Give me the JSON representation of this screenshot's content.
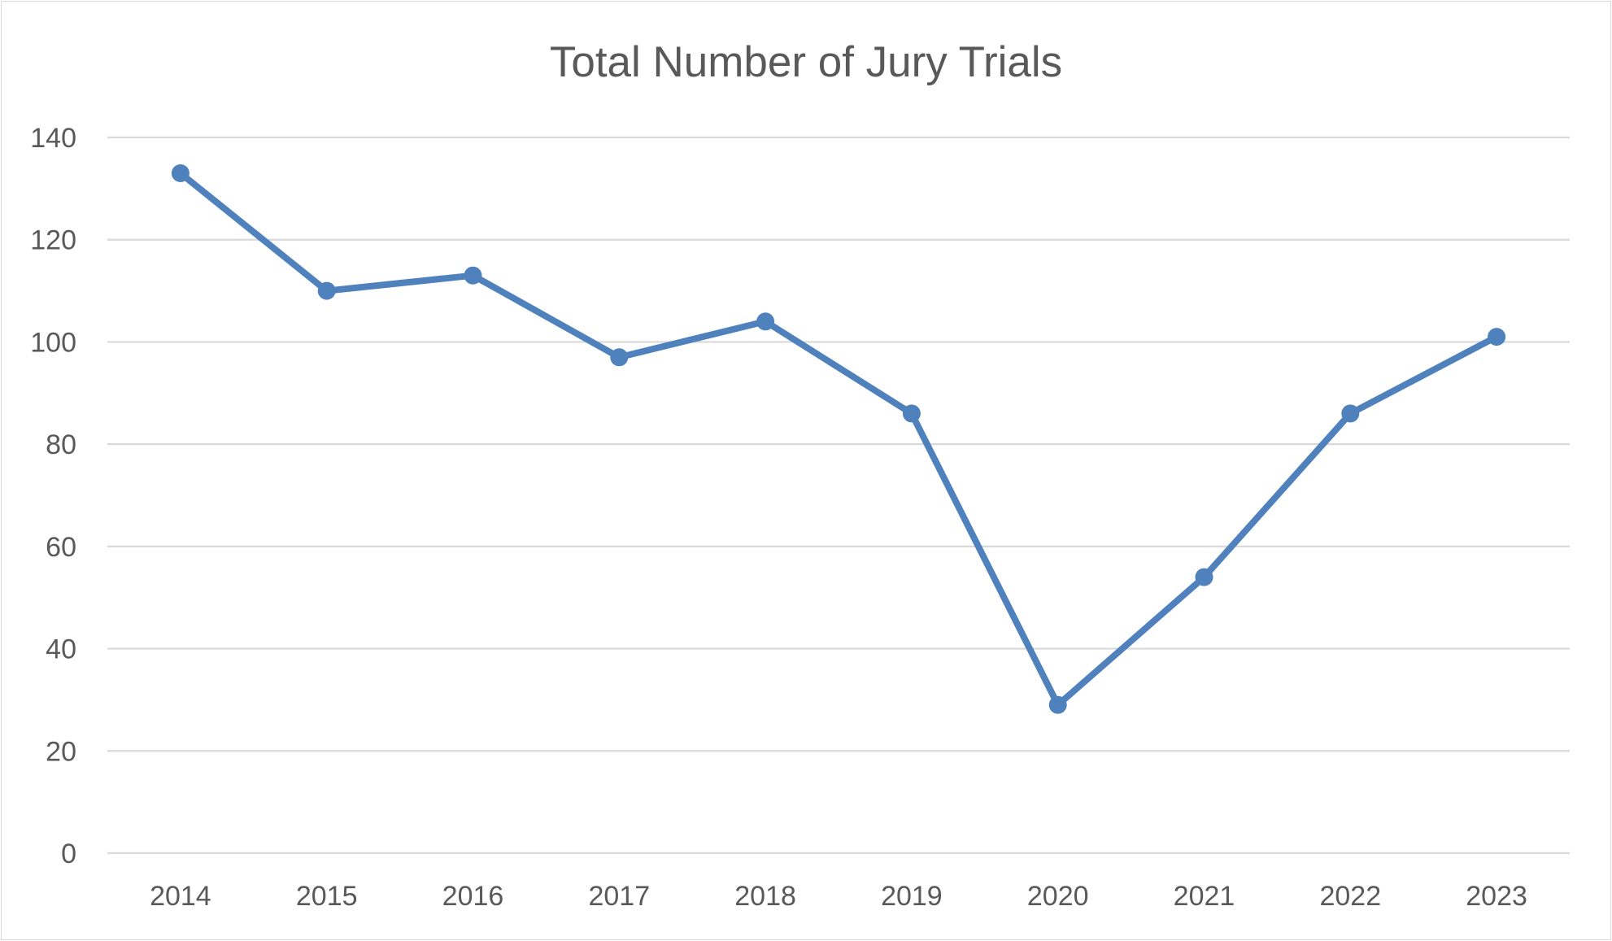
{
  "chart_data": {
    "type": "line",
    "title": "Total Number of Jury Trials",
    "xlabel": "",
    "ylabel": "",
    "categories": [
      "2014",
      "2015",
      "2016",
      "2017",
      "2018",
      "2019",
      "2020",
      "2021",
      "2022",
      "2023"
    ],
    "series": [
      {
        "values": [
          133,
          110,
          113,
          97,
          104,
          86,
          29,
          54,
          86,
          101
        ],
        "color": "#4f81bd"
      }
    ],
    "ylim": [
      0,
      140
    ],
    "yticks": [
      "0",
      "20",
      "40",
      "60",
      "80",
      "100",
      "120",
      "140"
    ],
    "grid": "horizontal",
    "legend": "none",
    "markers": true
  }
}
